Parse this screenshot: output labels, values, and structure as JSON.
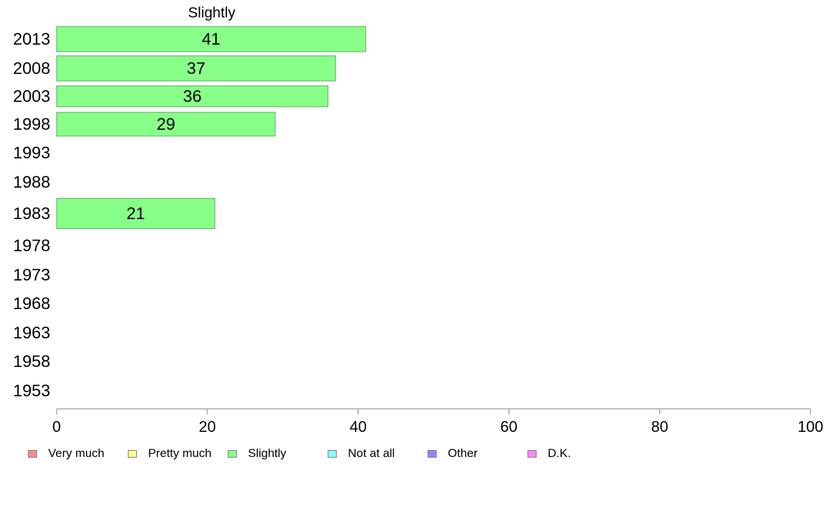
{
  "chart_data": {
    "type": "bar",
    "orientation": "horizontal",
    "title": "Slightly",
    "categories": [
      "2013",
      "2008",
      "2003",
      "1998",
      "1993",
      "1988",
      "1983",
      "1978",
      "1973",
      "1968",
      "1963",
      "1958",
      "1953"
    ],
    "series": [
      {
        "name": "Slightly",
        "values": [
          41,
          37,
          36,
          29,
          null,
          null,
          21,
          null,
          null,
          null,
          null,
          null,
          null
        ]
      }
    ],
    "data_labels": [
      "41",
      "37",
      "36",
      "29",
      "",
      "",
      "21",
      "",
      "",
      "",
      "",
      "",
      ""
    ],
    "xlim": [
      0,
      100
    ],
    "xticks": [
      0,
      20,
      40,
      60,
      80,
      100
    ],
    "xlabel": "",
    "ylabel": "",
    "grid": false,
    "bar_color": "#88ff88",
    "bar_edge_color": "#5aaa5a",
    "axis_color": "#808080",
    "legend_position": "bottom",
    "legend": [
      {
        "label": "Very much",
        "color": "#ff8888"
      },
      {
        "label": "Pretty much",
        "color": "#ffff88"
      },
      {
        "label": "Slightly",
        "color": "#88ff88"
      },
      {
        "label": "Not at all",
        "color": "#88ffff"
      },
      {
        "label": "Other",
        "color": "#8888ff"
      },
      {
        "label": "D.K.",
        "color": "#ff88ff"
      }
    ]
  }
}
